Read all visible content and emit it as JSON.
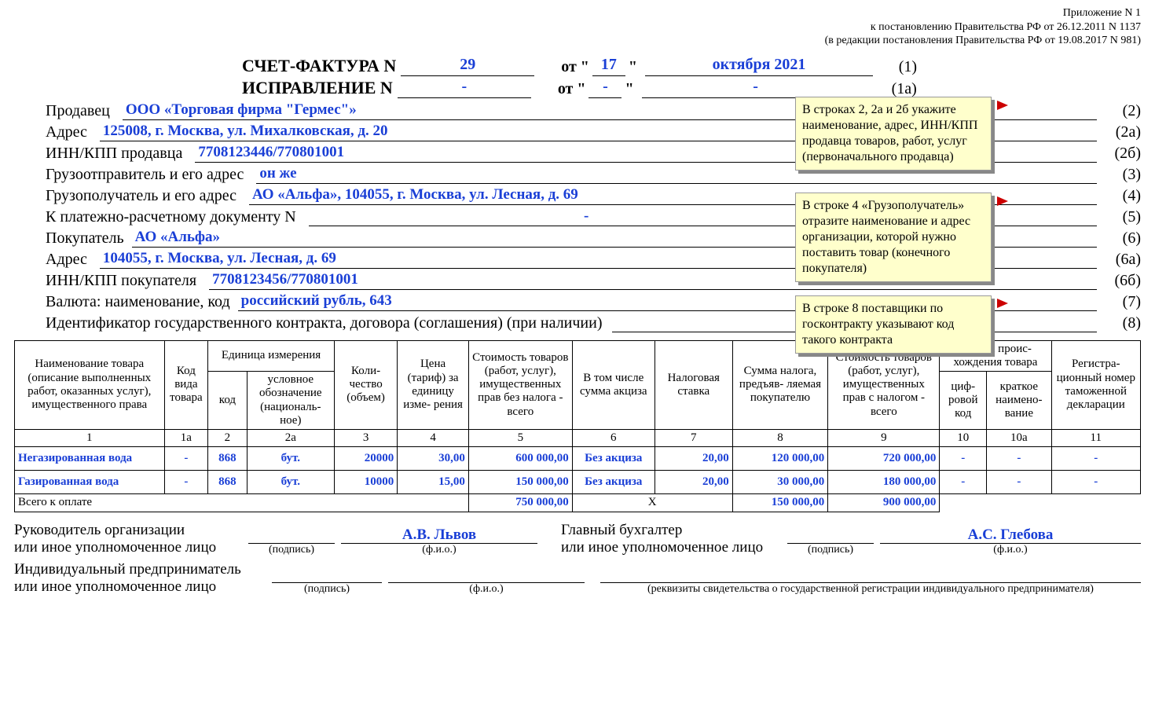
{
  "header": {
    "line1": "Приложение N 1",
    "line2": "к  постановлению Правительства РФ от 26.12.2011 N 1137",
    "line3": "(в редакции постановления Правительства РФ от 19.08.2017 N 981)"
  },
  "title": {
    "invoice_label": "СЧЕТ-ФАКТУРА N",
    "invoice_no": "29",
    "ot": "от \"",
    "day": "17",
    "quote_close": "\"",
    "month_year": "октября 2021",
    "paren1": "(1)",
    "correction_label": "ИСПРАВЛЕНИЕ N",
    "corr_no": "-",
    "corr_day": "-",
    "corr_my": "-",
    "paren1a": "(1а)"
  },
  "fields": [
    {
      "label": "Продавец",
      "value": "ООО «Торговая фирма \"Гермес\"»",
      "paren": "(2)"
    },
    {
      "label": "Адрес",
      "value": "125008, г. Москва, ул. Михалковская, д. 20",
      "paren": "(2а)"
    },
    {
      "label": "ИНН/КПП продавца",
      "value": "7708123446/770801001",
      "paren": "(2б)"
    },
    {
      "label": "Грузоотправитель и его адрес",
      "value": "он же",
      "paren": "(3)"
    },
    {
      "label": "Грузополучатель и его адрес",
      "value": "АО «Альфа», 104055, г. Москва, ул. Лесная, д. 69",
      "paren": "(4)"
    },
    {
      "label": "К платежно-расчетному документу N",
      "value": "-",
      "extra": "от",
      "value2": "",
      "paren": "(5)"
    },
    {
      "label": "Покупатель",
      "value": "АО «Альфа»",
      "paren": "(6)"
    },
    {
      "label": "Адрес",
      "value": "104055, г. Москва, ул. Лесная, д. 69",
      "paren": "(6а)"
    },
    {
      "label": "ИНН/КПП покупателя",
      "value": "7708123456/770801001",
      "paren": "(6б)"
    },
    {
      "label": "Валюта: наименование, код",
      "value": "российский рубль, 643",
      "paren": "(7)"
    },
    {
      "label": "Идентификатор государственного контракта, договора (соглашения) (при наличии)",
      "value": "",
      "paren": "(8)"
    }
  ],
  "notes": {
    "n1": "В строках 2, 2а и 2б укажите наименование, адрес, ИНН/КПП продавца товаров, работ, услуг (первоначального продавца)",
    "n2": "В строке 4 «Грузополучатель» отразите наименование и адрес организации, которой нужно поставить товар (конечного покупателя)",
    "n3": "В строке 8 поставщики по госконтракту указывают код такого контракта"
  },
  "table": {
    "headers": {
      "c1": "Наименование товара (описание выполненных работ, оказанных услуг), имущественного права",
      "c1a": "Код вида товара",
      "c2g": "Единица измерения",
      "c2": "код",
      "c2a": "условное обозначение (националь-\nное)",
      "c3": "Коли-\nчество (объем)",
      "c4": "Цена (тариф) за единицу изме-\nрения",
      "c5": "Стоимость товаров (работ, услуг), имущественных прав без налога - всего",
      "c6": "В том числе сумма акциза",
      "c7": "Налоговая ставка",
      "c8": "Сумма налога, предъяв-\nляемая покупателю",
      "c9": "Стоимость товаров (работ, услуг), имущественных прав с налогом - всего",
      "c10g": "Страна проис-\nхождения товара",
      "c10": "циф-\nровой код",
      "c10a": "краткое наимено-\nвание",
      "c11": "Регистра-\nционный номер таможенной декларации"
    },
    "numrow": [
      "1",
      "1а",
      "2",
      "2а",
      "3",
      "4",
      "5",
      "6",
      "7",
      "8",
      "9",
      "10",
      "10а",
      "11"
    ],
    "rows": [
      {
        "name": "Негазированная вода",
        "kv": "-",
        "code": "868",
        "unit": "бут.",
        "qty": "20000",
        "price": "30,00",
        "sum_wo": "600 000,00",
        "excise": "Без акциза",
        "rate": "20,00",
        "tax": "120 000,00",
        "sum_w": "720 000,00",
        "cc": "-",
        "cn": "-",
        "decl": "-"
      },
      {
        "name": "Газированная вода",
        "kv": "-",
        "code": "868",
        "unit": "бут.",
        "qty": "10000",
        "price": "15,00",
        "sum_wo": "150 000,00",
        "excise": "Без акциза",
        "rate": "20,00",
        "tax": "30 000,00",
        "sum_w": "180 000,00",
        "cc": "-",
        "cn": "-",
        "decl": "-"
      }
    ],
    "total_label": "Всего к оплате",
    "total": {
      "sum_wo": "750 000,00",
      "x": "X",
      "tax": "150 000,00",
      "sum_w": "900 000,00"
    }
  },
  "sig": {
    "l1a": "Руководитель организации",
    "l1b": "или иное уполномоченное лицо",
    "sign_sub": "(подпись)",
    "fio_sub": "(ф.и.о.)",
    "dir": "А.В. Львов",
    "l2a": "Главный бухгалтер",
    "l2b": "или иное уполномоченное лицо",
    "acc": "А.С. Глебова",
    "l3a": "Индивидуальный предприниматель",
    "l3b": "или иное уполномоченное лицо",
    "req_sub": "(реквизиты свидетельства о государственной регистрации индивидуального предпринимателя)"
  },
  "style": {
    "value_color": "#1a3fd6",
    "note_bg": "#ffffcc"
  }
}
